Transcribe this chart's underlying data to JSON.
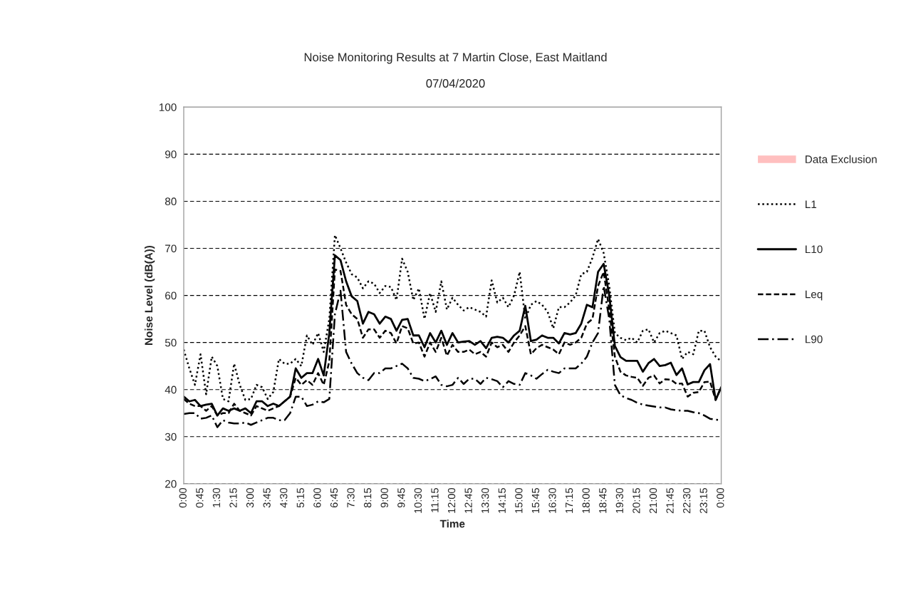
{
  "chart_data": {
    "type": "line",
    "title": "Noise Monitoring Results at 7 Martin Close, East Maitland",
    "subtitle": "07/04/2020",
    "xlabel": "Time",
    "ylabel": "Noise Level (dB(A))",
    "categories": [
      "0:00",
      null,
      null,
      "0:45",
      null,
      null,
      "1:30",
      null,
      null,
      "2:15",
      null,
      null,
      "3:00",
      null,
      null,
      "3:45",
      null,
      null,
      "4:30",
      null,
      null,
      "5:15",
      null,
      null,
      "6:00",
      null,
      null,
      "6:45",
      null,
      null,
      "7:30",
      null,
      null,
      "8:15",
      null,
      null,
      "9:00",
      null,
      null,
      "9:45",
      null,
      null,
      "10:30",
      null,
      null,
      "11:15",
      null,
      null,
      "12:00",
      null,
      null,
      "12:45",
      null,
      null,
      "13:30",
      null,
      null,
      "14:15",
      null,
      null,
      "15:00",
      null,
      null,
      "15:45",
      null,
      null,
      "16:30",
      null,
      null,
      "17:15",
      null,
      null,
      "18:00",
      null,
      null,
      "18:45",
      null,
      null,
      "19:30",
      null,
      null,
      "20:15",
      null,
      null,
      "21:00",
      null,
      null,
      "21:45",
      null,
      null,
      "22:30",
      null,
      null,
      "23:15",
      null,
      null,
      "0:00"
    ],
    "ylim": [
      20,
      100
    ],
    "yticks": [
      20,
      30,
      40,
      50,
      60,
      70,
      80,
      90,
      100
    ],
    "grid": "y",
    "legend": "right",
    "marker": "none",
    "series": [
      {
        "name": "Data Exclusion",
        "type": "area",
        "color": "#ffbfbf",
        "values": [
          null,
          null,
          null,
          null,
          null,
          null,
          null,
          null,
          null,
          null,
          null,
          null,
          null,
          null,
          null,
          null,
          null,
          null,
          null,
          null,
          null,
          null,
          null,
          null,
          null,
          null,
          null,
          null,
          null,
          null,
          null,
          null,
          null,
          null,
          null,
          null,
          null,
          null,
          null,
          null,
          null,
          null,
          null,
          null,
          null,
          null,
          null,
          null,
          null,
          null,
          null,
          null,
          null,
          null,
          null,
          null,
          null,
          null,
          null,
          null,
          null,
          null,
          null,
          null,
          null,
          null,
          null,
          null,
          null,
          null,
          null,
          null,
          null,
          null,
          null,
          null,
          null,
          null,
          null,
          null,
          null,
          null,
          null,
          null,
          null,
          null,
          null,
          null,
          null,
          null,
          null,
          null,
          null,
          null,
          null,
          null,
          null
        ]
      },
      {
        "name": "L1",
        "color": "#000000",
        "line_style": "dotted",
        "values": [
          48.5,
          44.5,
          41,
          47.5,
          39,
          47,
          45,
          38,
          37.5,
          45.5,
          41,
          37.8,
          38,
          41,
          40.5,
          38,
          39.5,
          46.5,
          45.5,
          45.5,
          46.5,
          45,
          51.5,
          49.5,
          52,
          48,
          55,
          72.8,
          70,
          67,
          64.5,
          63.8,
          61.5,
          63,
          62.5,
          60.5,
          62,
          61.8,
          59,
          67.8,
          65,
          59,
          61.5,
          55,
          60.5,
          56.5,
          63,
          57,
          59.5,
          58,
          56.8,
          57.5,
          57,
          56.5,
          55.5,
          63.2,
          58.5,
          59.5,
          57.5,
          60,
          65,
          55,
          58,
          58.8,
          58,
          56.5,
          53,
          57.5,
          57.5,
          58.5,
          60,
          64.5,
          65,
          68,
          72,
          69,
          62,
          52,
          51,
          50.5,
          51,
          50,
          52.5,
          52.8,
          50,
          52,
          52.5,
          52,
          51.5,
          46.5,
          48,
          47.5,
          52.5,
          52.5,
          49,
          47,
          46
        ]
      },
      {
        "name": "L10",
        "color": "#000000",
        "line_style": "solid",
        "values": [
          38.5,
          37.5,
          37.8,
          36.5,
          36.8,
          37,
          34.5,
          36,
          35.5,
          36,
          35.5,
          36,
          35,
          37.5,
          37.5,
          36.5,
          37,
          36.5,
          37.5,
          38.5,
          44.5,
          42.5,
          43.5,
          43.5,
          46.5,
          43,
          52,
          68.5,
          67.5,
          63,
          59.8,
          58.8,
          54,
          56.5,
          56,
          54,
          55.5,
          55,
          52.5,
          54.8,
          55,
          51.5,
          51.5,
          49,
          52,
          50,
          52.5,
          49.5,
          52,
          50,
          50.2,
          50.3,
          49.5,
          50.3,
          48.8,
          51,
          51.2,
          51,
          50,
          51.5,
          52.5,
          57.8,
          50.3,
          50.6,
          51.5,
          51,
          51,
          49.8,
          52,
          51.7,
          52,
          54,
          58,
          57.5,
          65,
          66.7,
          60,
          49.3,
          46.9,
          46.1,
          46.1,
          46.1,
          43.8,
          45.6,
          46.5,
          45,
          45.2,
          45.7,
          43.1,
          44.5,
          41.1,
          41.6,
          41.6,
          44.1,
          45.4,
          37.8,
          40.5
        ]
      },
      {
        "name": "Leq",
        "color": "#000000",
        "line_style": "dashed",
        "values": [
          38,
          37,
          36.5,
          36.5,
          35.5,
          36.5,
          34.5,
          35,
          35,
          37,
          35.5,
          35,
          34.5,
          36.5,
          36,
          35.5,
          36,
          36.5,
          37.5,
          38.5,
          42.5,
          41,
          42,
          41,
          43.5,
          41,
          46,
          65.5,
          65.2,
          58,
          56,
          55,
          51,
          52.8,
          52.8,
          51,
          52.5,
          52,
          49.8,
          53.5,
          53,
          49.8,
          50,
          47,
          50,
          48,
          51,
          47.2,
          49.5,
          48,
          48,
          48.5,
          47.5,
          48,
          47,
          50,
          49,
          49.5,
          48,
          50,
          51.5,
          53.5,
          47.5,
          48.8,
          49.5,
          49,
          48.5,
          47.5,
          50,
          49.5,
          50,
          51,
          54,
          55,
          62,
          65,
          57,
          47,
          43.8,
          43,
          42.7,
          42.5,
          40.8,
          42.5,
          43,
          41.3,
          42.2,
          42.1,
          41.2,
          41.3,
          38.5,
          39.3,
          39.5,
          41.6,
          41.7,
          37.8,
          40.6
        ]
      },
      {
        "name": "L90",
        "color": "#000000",
        "line_style": "dashdot",
        "values": [
          34.8,
          35,
          35,
          33.8,
          34,
          34.5,
          32,
          33.5,
          33,
          32.8,
          32.8,
          33,
          32.5,
          33,
          33.5,
          34,
          34,
          33.5,
          33.5,
          35,
          38.5,
          38.5,
          36.5,
          36.8,
          37.5,
          37.3,
          38,
          56,
          61,
          48,
          45.5,
          43.5,
          42.5,
          42,
          43.5,
          43.5,
          44.5,
          44.5,
          45,
          45.5,
          44.5,
          42.5,
          42.3,
          41.8,
          42.2,
          42.8,
          41,
          40.7,
          41,
          42.5,
          41.2,
          42.3,
          42.3,
          41.2,
          42.5,
          42.2,
          41.8,
          40.5,
          41.8,
          41.2,
          41,
          43.5,
          43,
          42.3,
          43.3,
          44.2,
          43.8,
          43.5,
          44.5,
          44.5,
          44.5,
          45.5,
          47,
          50,
          52,
          62,
          55,
          41,
          38.8,
          38.2,
          37.8,
          37.2,
          36.8,
          36.6,
          36.4,
          36.2,
          36.2,
          35.8,
          35.6,
          35.5,
          35.5,
          35.2,
          35,
          34.5,
          33.8,
          33.6,
          33.5
        ]
      }
    ]
  }
}
